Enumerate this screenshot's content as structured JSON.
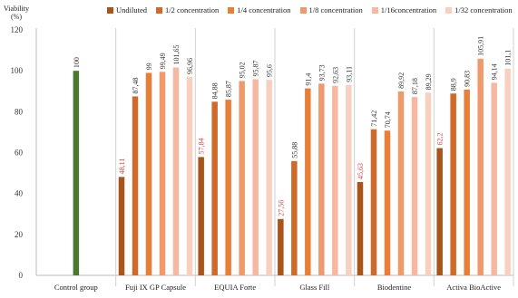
{
  "chart_data": {
    "type": "bar",
    "ylabel": [
      "Viability",
      "(%)"
    ],
    "ylim": [
      0,
      120
    ],
    "yticks": [
      0,
      20,
      40,
      60,
      80,
      100,
      120
    ],
    "grid": "vertical-separators",
    "legend_position": "top",
    "groups": [
      {
        "name": "Control group",
        "values": [
          100
        ],
        "labels": [
          "100"
        ],
        "special": "control"
      },
      {
        "name": "Fuji IX GP Capsule",
        "values": [
          48.11,
          87.48,
          99,
          99.49,
          101.65,
          96.96
        ],
        "labels": [
          "48,11",
          "87,48",
          "99",
          "99,49",
          "101,65",
          "96,96"
        ]
      },
      {
        "name": "EQUIA Forte",
        "values": [
          57.84,
          84.88,
          85.87,
          95.02,
          95.87,
          95.6
        ],
        "labels": [
          "57,84",
          "84,88",
          "85,87",
          "95,02",
          "95,87",
          "95,6"
        ]
      },
      {
        "name": "Glass Fill",
        "values": [
          27.56,
          55.88,
          91.4,
          93.73,
          92.63,
          93.11
        ],
        "labels": [
          "27,56",
          "55,88",
          "91,4",
          "93,73",
          "92,63",
          "93,11"
        ]
      },
      {
        "name": "Biodentine",
        "values": [
          45.63,
          71.42,
          70.74,
          89.92,
          87.18,
          89.29
        ],
        "labels": [
          "45,63",
          "71,42",
          "70,74",
          "89,92",
          "87,18",
          "89,29"
        ]
      },
      {
        "name": "Activa BioActive",
        "values": [
          62.2,
          88.9,
          90.83,
          105.91,
          94.14,
          101.1
        ],
        "labels": [
          "62,2",
          "88,9",
          "90,83",
          "105,91",
          "94,14",
          "101,1"
        ]
      }
    ],
    "series": [
      {
        "name": "Undiluted",
        "color": "#a8541b"
      },
      {
        "name": "1/2 concentration",
        "color": "#cf6a2a"
      },
      {
        "name": "1/4 concentration",
        "color": "#e77f38"
      },
      {
        "name": "1/8 concentration",
        "color": "#f09a6c"
      },
      {
        "name": "1/16concentration",
        "color": "#f6b8a0"
      },
      {
        "name": "1/32 concentration",
        "color": "#f9cfc0"
      }
    ],
    "control_color": "#4a7a32",
    "highlight_label_color": "#e03b3b",
    "label_color": "#333333"
  }
}
